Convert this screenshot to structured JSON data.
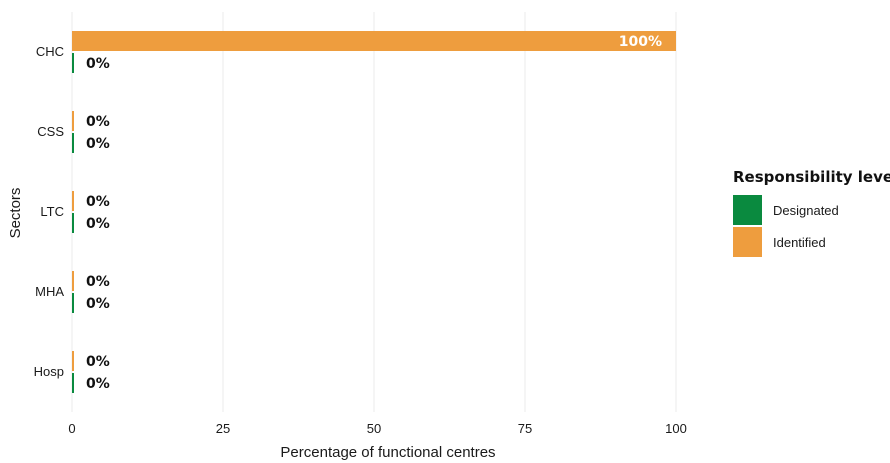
{
  "chart_data": {
    "type": "bar",
    "orientation": "horizontal",
    "categories": [
      "CHC",
      "CSS",
      "LTC",
      "MHA",
      "Hosp"
    ],
    "series": [
      {
        "name": "Identified",
        "color": "#EE9D3E",
        "values": [
          100,
          0,
          0,
          0,
          0
        ],
        "labels": [
          "100%",
          "0%",
          "0%",
          "0%",
          "0%"
        ]
      },
      {
        "name": "Designated",
        "color": "#0A8A3F",
        "values": [
          0,
          0,
          0,
          0,
          0
        ],
        "labels": [
          "0%",
          "0%",
          "0%",
          "0%",
          "0%"
        ]
      }
    ],
    "xlabel": "Percentage of functional centres",
    "ylabel": "Sectors",
    "xlim": [
      0,
      100
    ],
    "xticks": [
      "0",
      "25",
      "50",
      "75",
      "100"
    ],
    "grid": true,
    "legend": {
      "title": "Responsibility level",
      "position": "right",
      "items": [
        {
          "label": "Designated",
          "color": "#0A8A3F"
        },
        {
          "label": "Identified",
          "color": "#EE9D3E"
        }
      ]
    }
  }
}
